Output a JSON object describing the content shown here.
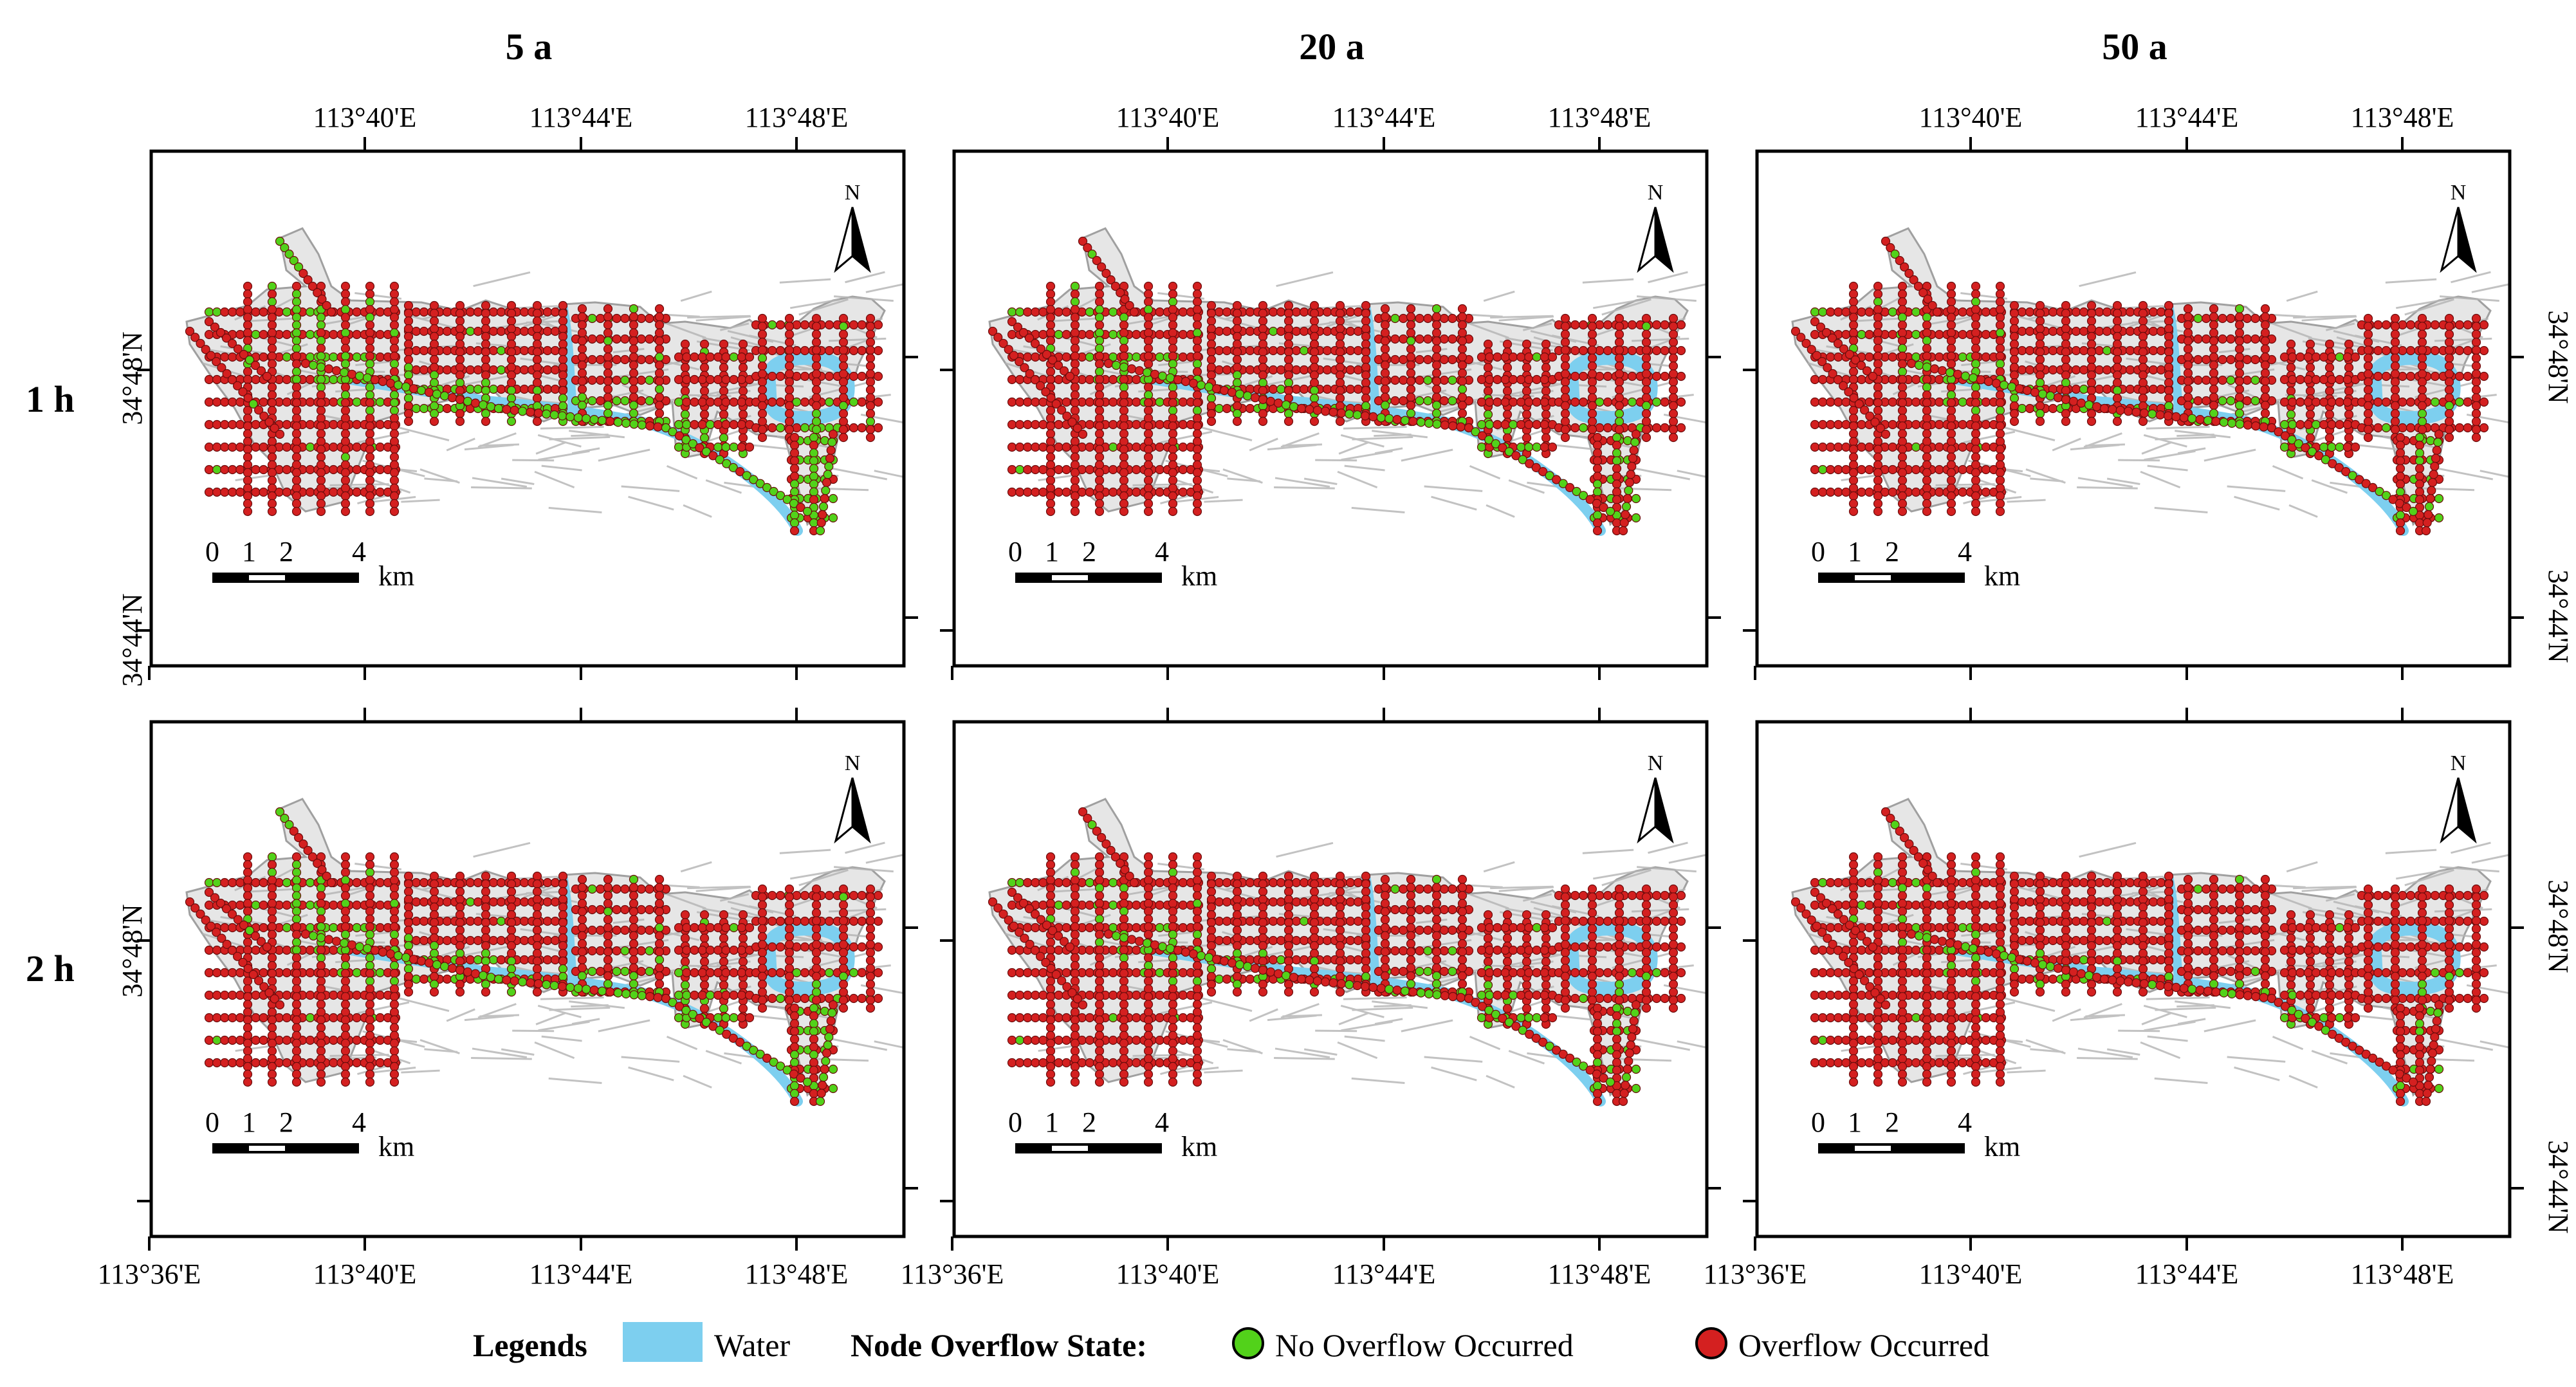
{
  "figure": {
    "column_headers": [
      "5 a",
      "20 a",
      "50 a"
    ],
    "row_headers": [
      "1 h",
      "2 h"
    ],
    "lon_labels": [
      "113°36'E",
      "113°40'E",
      "113°44'E",
      "113°48'E"
    ],
    "lat_labels": [
      "34°44'N",
      "34°48'N"
    ],
    "north_label": "N",
    "scale": {
      "ticks": [
        "0",
        "1",
        "2",
        "4"
      ],
      "unit": "km"
    }
  },
  "legend": {
    "title": "Legends",
    "water_label": "Water",
    "state_title": "Node Overflow State:",
    "no_overflow_label": "No Overflow Occurred",
    "overflow_label": "Overflow Occurred"
  },
  "colors": {
    "water": "#7dcfef",
    "no_overflow": "#52d21a",
    "overflow": "#d42020",
    "network": "#b4b4b4"
  },
  "panels": [
    {
      "scenario": "5 a",
      "duration": "1 h",
      "no_overflow_share": 0.16
    },
    {
      "scenario": "20 a",
      "duration": "1 h",
      "no_overflow_share": 0.09
    },
    {
      "scenario": "50 a",
      "duration": "1 h",
      "no_overflow_share": 0.07
    },
    {
      "scenario": "5 a",
      "duration": "2 h",
      "no_overflow_share": 0.12
    },
    {
      "scenario": "20 a",
      "duration": "2 h",
      "no_overflow_share": 0.07
    },
    {
      "scenario": "50 a",
      "duration": "2 h",
      "no_overflow_share": 0.05
    }
  ]
}
